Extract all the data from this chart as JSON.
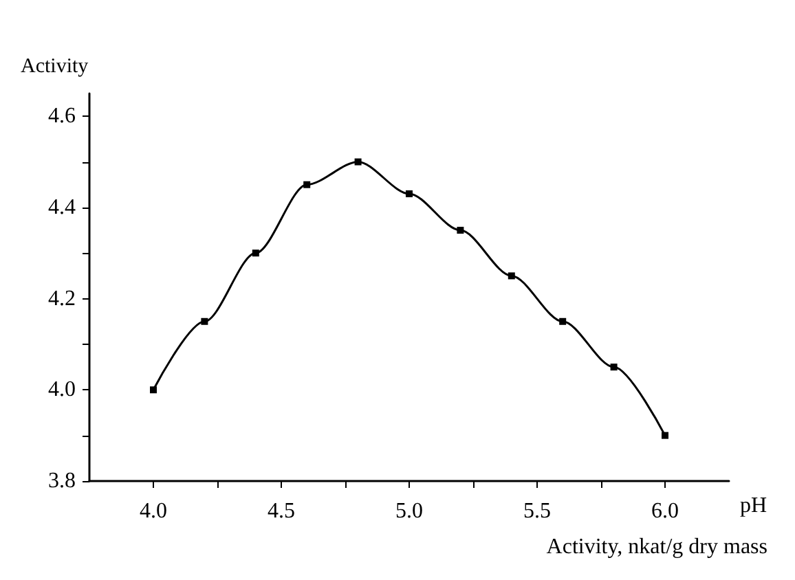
{
  "chart_data": {
    "type": "line",
    "ylabel": "Activity",
    "xlabel": "pH",
    "annotations": [
      "Activity, nkat/g dry mass"
    ],
    "x": [
      4.0,
      4.2,
      4.4,
      4.6,
      4.8,
      5.0,
      5.2,
      5.4,
      5.6,
      5.8,
      6.0
    ],
    "values": [
      4.0,
      4.15,
      4.3,
      4.45,
      4.5,
      4.43,
      4.35,
      4.25,
      4.15,
      4.05,
      3.9
    ],
    "color": "#000000",
    "marker": "square",
    "line_style": "solid",
    "xlim": [
      3.75,
      6.25
    ],
    "xticks": [
      {
        "value": 4,
        "label": "4.0"
      },
      {
        "value": 4.25,
        "label": null
      },
      4.5,
      {
        "value": 4.75,
        "label": null
      },
      {
        "value": 5,
        "label": "5.0"
      },
      {
        "value": 5.25,
        "label": null
      },
      5.5,
      {
        "value": 5.75,
        "label": null
      },
      {
        "value": 6,
        "label": "6.0"
      }
    ],
    "ylim": [
      3.8,
      4.65
    ],
    "yticks": [
      3.8,
      {
        "value": 3.9,
        "label": null
      },
      {
        "value": 4,
        "label": "4.0"
      },
      {
        "value": 4.1,
        "label": null
      },
      4.2,
      {
        "value": 4.3,
        "label": null
      },
      4.4,
      {
        "value": 4.5,
        "label": null
      },
      4.6
    ]
  }
}
